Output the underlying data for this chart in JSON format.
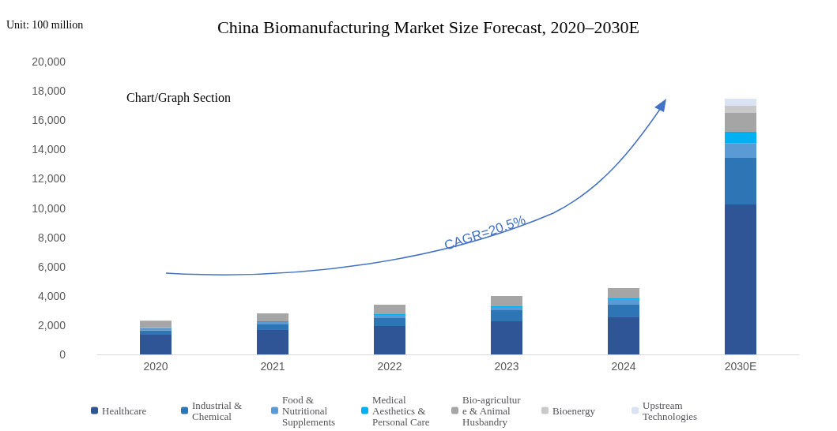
{
  "chart_data": {
    "type": "bar",
    "title": "China Biomanufacturing Market Size Forecast, 2020–2030E",
    "annotations": [
      "Unit: 100 million",
      "Chart/Graph Section",
      "CAGR=20.5%"
    ],
    "categories": [
      "2020",
      "2021",
      "2022",
      "2023",
      "2024",
      "2030E"
    ],
    "stacked": true,
    "grid": false,
    "legend": "bottom",
    "ylim": [
      0,
      20000
    ],
    "yticks": [
      {
        "value": 0,
        "label": "0"
      },
      {
        "value": 2000,
        "label": "2,000"
      },
      {
        "value": 4000,
        "label": "4,000"
      },
      {
        "value": 6000,
        "label": "6,000"
      },
      {
        "value": 8000,
        "label": "8,000"
      },
      {
        "value": 10000,
        "label": "10,000"
      },
      {
        "value": 12000,
        "label": "12,000"
      },
      {
        "value": 14000,
        "label": "14,000"
      },
      {
        "value": 16000,
        "label": "16,000"
      },
      {
        "value": 18000,
        "label": "18,000"
      },
      {
        "value": 20000,
        "label": "20,000"
      }
    ],
    "series": [
      {
        "name": "Healthcare",
        "color": "#2f5597",
        "values": [
          1350,
          1670,
          1940,
          2260,
          2530,
          10240
        ]
      },
      {
        "name": "Industrial & Chemical",
        "color": "#2e75b6",
        "values": [
          300,
          380,
          540,
          760,
          870,
          3230
        ]
      },
      {
        "name": "Food & Nutritional Supplements",
        "color": "#5b9bd5",
        "values": [
          150,
          160,
          220,
          220,
          380,
          970
        ]
      },
      {
        "name": "Medical Aesthetics & Personal Care",
        "color": "#00b0f0",
        "values": [
          50,
          50,
          50,
          50,
          50,
          760
        ]
      },
      {
        "name": "Bio-agriculture & Animal Husbandry",
        "color": "#a5a5a5",
        "values": [
          450,
          540,
          650,
          700,
          700,
          1290
        ]
      },
      {
        "name": "Bioenergy",
        "color": "#c9c9c9",
        "values": [
          0,
          0,
          0,
          0,
          0,
          490
        ]
      },
      {
        "name": "Upstream Technologies",
        "color": "#dae3f3",
        "values": [
          0,
          0,
          0,
          0,
          0,
          480
        ]
      }
    ]
  }
}
